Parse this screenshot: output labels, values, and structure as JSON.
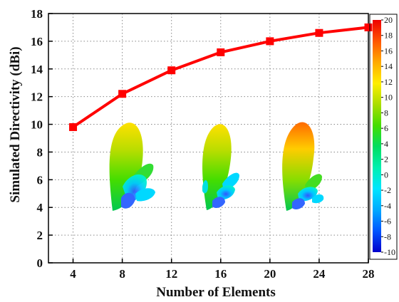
{
  "chart_data": {
    "type": "line",
    "title": "",
    "xlabel": "Number of Elements",
    "ylabel": "Simulated Directivity (dBi)",
    "x": [
      4,
      8,
      12,
      16,
      20,
      24,
      28
    ],
    "xlim": [
      2,
      28
    ],
    "ylim": [
      0,
      18
    ],
    "xticks": [
      4,
      8,
      12,
      16,
      20,
      24,
      28
    ],
    "yticks": [
      0,
      2,
      4,
      6,
      8,
      10,
      12,
      14,
      16,
      18
    ],
    "grid": true,
    "series": [
      {
        "values": [
          9.8,
          12.2,
          13.9,
          15.2,
          16.0,
          16.6,
          17.0
        ],
        "color": "#ff0000",
        "marker": "square"
      }
    ],
    "colorbar": {
      "ticks": [
        20,
        18,
        16,
        14,
        12,
        10,
        8,
        6,
        4,
        2,
        0,
        -2,
        -4,
        -6,
        -8,
        -10
      ],
      "colors": [
        "#0000cc",
        "#0055ff",
        "#00aaff",
        "#00e5ff",
        "#00f0b0",
        "#00dd60",
        "#44dd00",
        "#aadd00",
        "#ffee00",
        "#ffaa00",
        "#ff5500",
        "#ee0000"
      ]
    },
    "inset_images": [
      "radiation-pattern-8-elements",
      "radiation-pattern-16-elements",
      "radiation-pattern-24-elements"
    ]
  }
}
